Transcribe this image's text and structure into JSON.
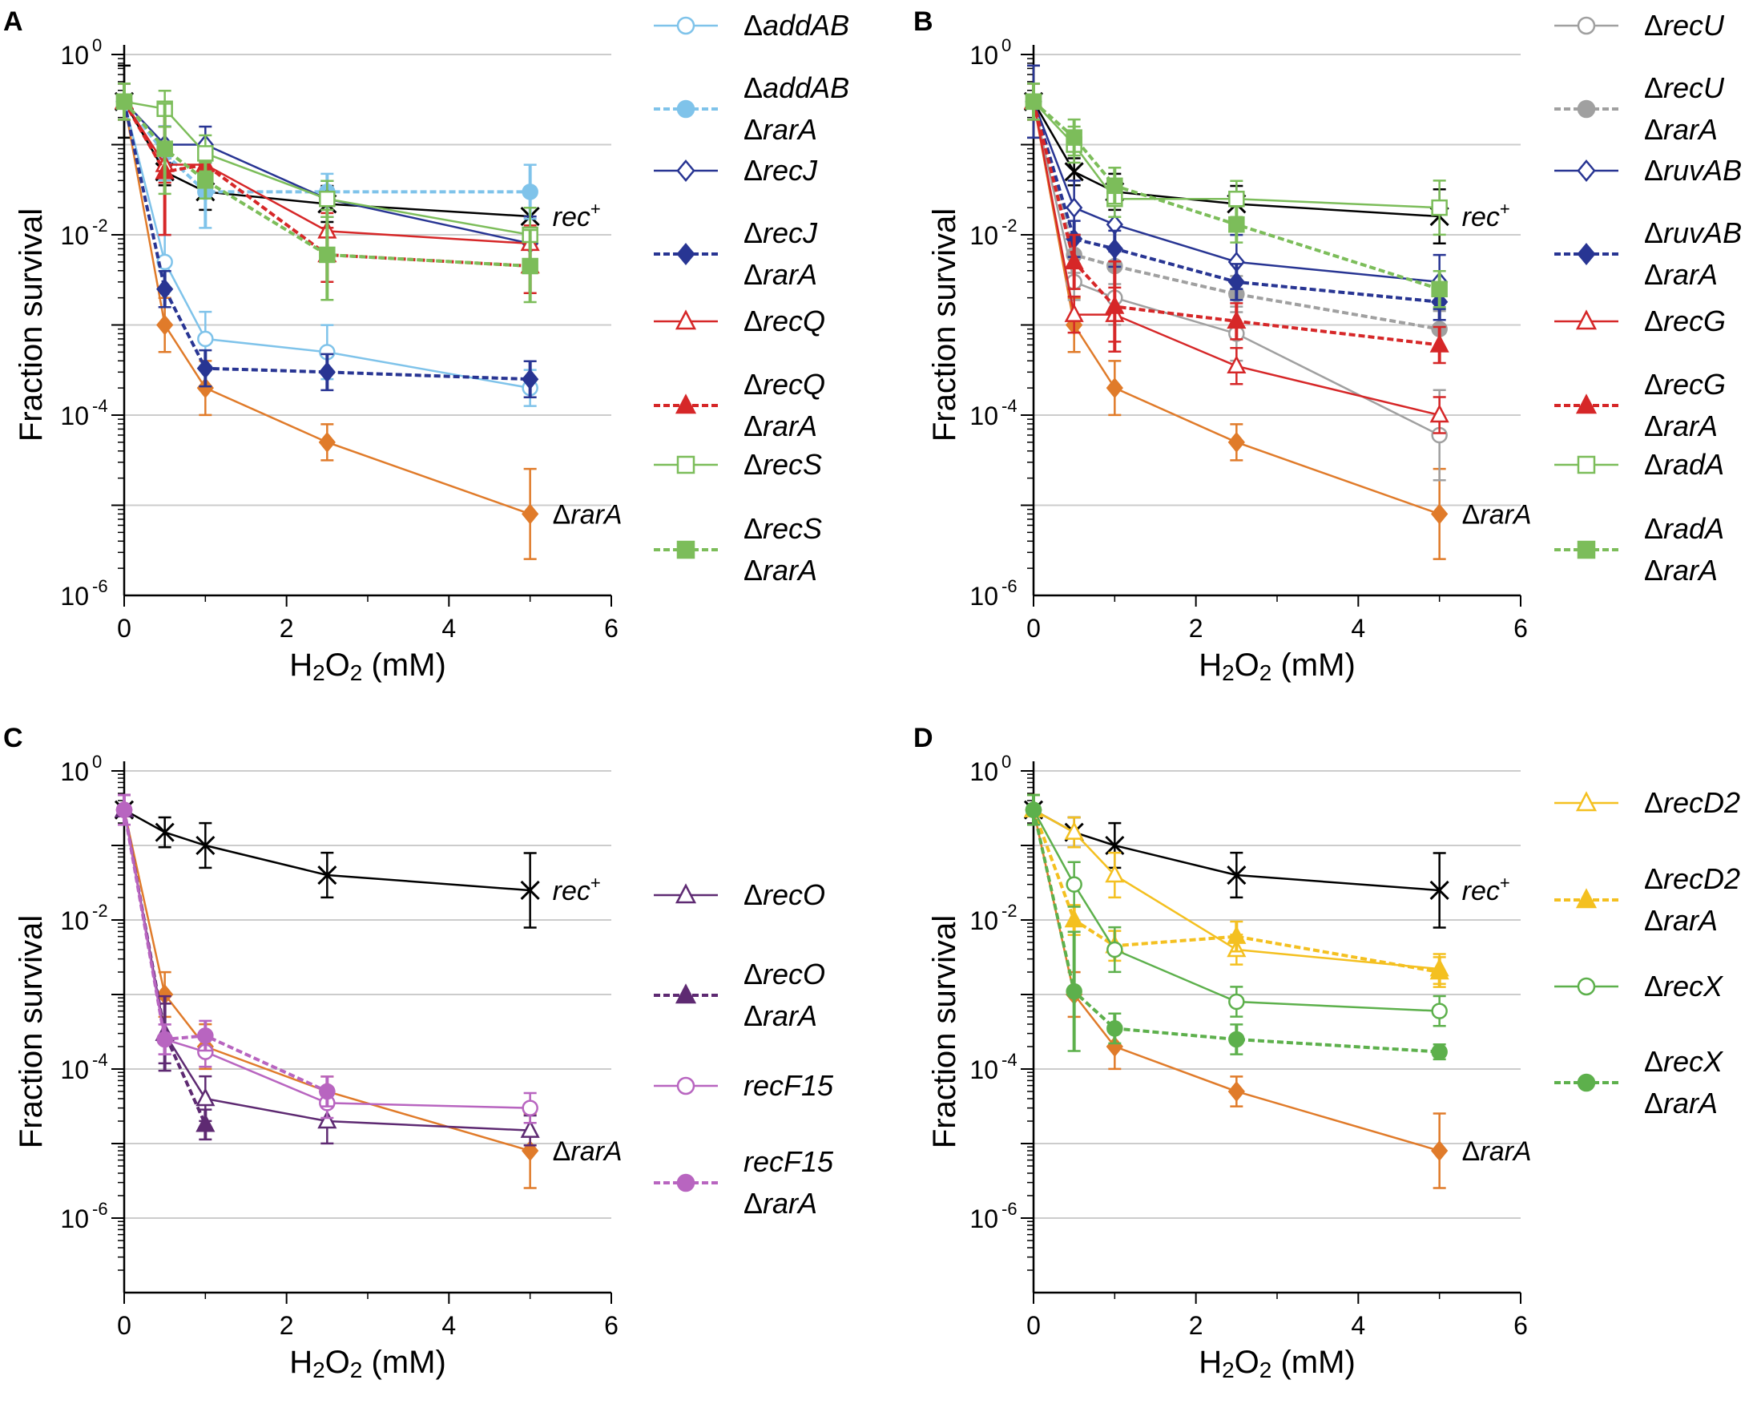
{
  "colors": {
    "rec_plus": "#000000",
    "rarA": "#e07b2a",
    "addAB": "#7fc3ea",
    "recJ": "#283593",
    "recQ": "#d62728",
    "recS": "#7cbd5a",
    "recU": "#a0a0a0",
    "ruvAB": "#283593",
    "recG": "#d62728",
    "radA": "#7cbd5a",
    "recO": "#5e2a72",
    "recO_rarA": "#5e2a72",
    "recF15": "#b865c0",
    "recD2": "#f4c020",
    "recX": "#5db04c",
    "grid": "#cccccc"
  },
  "chart_data": [
    {
      "panel": "A",
      "type": "line",
      "xlabel_prefix": "H",
      "xlabel_sub1": "2",
      "xlabel_mid": "O",
      "xlabel_sub2": "2",
      "xlabel_suffix": " (mM)",
      "ylabel": "Fraction survival",
      "x_ticks": [
        "0",
        "2",
        "4",
        "6"
      ],
      "y_ticks": [
        {
          "base": "10",
          "exp": "0"
        },
        {
          "base": "10",
          "exp": "-2"
        },
        {
          "base": "10",
          "exp": "-4"
        },
        {
          "base": "10",
          "exp": "-6"
        }
      ],
      "xlim": [
        0,
        6
      ],
      "ylog_range": [
        -6,
        0
      ],
      "x": [
        0,
        0.5,
        1,
        2.5,
        5
      ],
      "series": [
        {
          "name": "rec+",
          "label_text": "rec",
          "label_sup": "+",
          "color_key": "rec_plus",
          "marker": "x",
          "dashed": false,
          "values": [
            0.3,
            0.05,
            0.03,
            0.022,
            0.016
          ],
          "err": [
            0.4,
            0.15,
            0.2,
            0.2,
            0.3
          ],
          "legend": false,
          "curve_label": true
        },
        {
          "name": "ΔrarA",
          "label_text": "ΔrarA",
          "color_key": "rarA",
          "marker": "diamond",
          "filled": true,
          "dashed": false,
          "values": [
            0.3,
            0.001,
            0.0002,
            5e-05,
            8e-06
          ],
          "err": [
            0.2,
            0.3,
            0.3,
            0.2,
            0.5
          ],
          "legend": false,
          "curve_label": true
        },
        {
          "name": "ΔaddAB",
          "legend_lines": [
            "ΔaddAB"
          ],
          "color_key": "addAB",
          "marker": "circle",
          "filled": false,
          "dashed": false,
          "values": [
            0.3,
            0.005,
            0.0007,
            0.0005,
            0.0002
          ],
          "err": [
            0.2,
            0.3,
            0.3,
            0.3,
            0.2
          ],
          "legend": true
        },
        {
          "name": "ΔaddAB ΔrarA",
          "legend_lines": [
            "ΔaddAB",
            "ΔrarA"
          ],
          "color_key": "addAB",
          "marker": "circle",
          "filled": true,
          "dashed": true,
          "values": [
            0.3,
            0.08,
            0.03,
            0.03,
            0.03
          ],
          "err": [
            0.2,
            0.3,
            0.4,
            0.2,
            0.3
          ],
          "legend": true
        },
        {
          "name": "ΔrecJ",
          "legend_lines": [
            "ΔrecJ"
          ],
          "color_key": "recJ",
          "marker": "diamond",
          "filled": false,
          "dashed": false,
          "values": [
            0.3,
            0.1,
            0.1,
            0.025,
            0.008
          ],
          "err": [
            0.2,
            0.2,
            0.2,
            0.2,
            0.3
          ],
          "legend": true
        },
        {
          "name": "ΔrecJ ΔrarA",
          "legend_lines": [
            "ΔrecJ",
            "ΔrarA"
          ],
          "color_key": "recJ",
          "marker": "diamond",
          "filled": true,
          "dashed": true,
          "values": [
            0.3,
            0.0025,
            0.00033,
            0.0003,
            0.00025
          ],
          "err": [
            0.2,
            0.2,
            0.2,
            0.2,
            0.2
          ],
          "legend": true
        },
        {
          "name": "ΔrecQ",
          "legend_lines": [
            "ΔrecQ"
          ],
          "color_key": "recQ",
          "marker": "triangle",
          "filled": false,
          "dashed": false,
          "values": [
            0.3,
            0.06,
            0.06,
            0.011,
            0.008
          ],
          "err": [
            0.2,
            0.2,
            0.2,
            0.2,
            0.2
          ],
          "legend": true
        },
        {
          "name": "ΔrecQ ΔrarA",
          "legend_lines": [
            "ΔrecQ",
            "ΔrarA"
          ],
          "color_key": "recQ",
          "marker": "triangle",
          "filled": true,
          "dashed": true,
          "values": [
            0.3,
            0.05,
            0.06,
            0.006,
            0.0045
          ],
          "err": [
            0.2,
            0.7,
            0.2,
            0.3,
            0.3
          ],
          "legend": true
        },
        {
          "name": "ΔrecS",
          "legend_lines": [
            "ΔrecS"
          ],
          "color_key": "recS",
          "marker": "square",
          "filled": false,
          "dashed": false,
          "values": [
            0.3,
            0.25,
            0.08,
            0.025,
            0.01
          ],
          "err": [
            0.2,
            0.2,
            0.2,
            0.2,
            0.3
          ],
          "legend": true
        },
        {
          "name": "ΔrecS ΔrarA",
          "legend_lines": [
            "ΔrecS",
            "ΔrarA"
          ],
          "color_key": "recS",
          "marker": "square",
          "filled": true,
          "dashed": true,
          "values": [
            0.3,
            0.09,
            0.04,
            0.006,
            0.0045
          ],
          "err": [
            0.2,
            0.5,
            0.2,
            0.5,
            0.4
          ],
          "legend": true
        }
      ]
    },
    {
      "panel": "B",
      "type": "line",
      "xlabel_prefix": "H",
      "xlabel_sub1": "2",
      "xlabel_mid": "O",
      "xlabel_sub2": "2",
      "xlabel_suffix": " (mM)",
      "ylabel": "Fraction survival",
      "x_ticks": [
        "0",
        "2",
        "4",
        "6"
      ],
      "y_ticks": [
        {
          "base": "10",
          "exp": "0"
        },
        {
          "base": "10",
          "exp": "-2"
        },
        {
          "base": "10",
          "exp": "-4"
        },
        {
          "base": "10",
          "exp": "-6"
        }
      ],
      "xlim": [
        0,
        6
      ],
      "ylog_range": [
        -6,
        0
      ],
      "x": [
        0,
        0.5,
        1,
        2.5,
        5
      ],
      "series": [
        {
          "name": "rec+",
          "label_text": "rec",
          "label_sup": "+",
          "color_key": "rec_plus",
          "marker": "x",
          "dashed": false,
          "values": [
            0.3,
            0.05,
            0.03,
            0.022,
            0.016
          ],
          "err": [
            0.4,
            0.15,
            0.2,
            0.2,
            0.3
          ],
          "legend": false,
          "curve_label": true
        },
        {
          "name": "ΔrarA",
          "label_text": "ΔrarA",
          "color_key": "rarA",
          "marker": "diamond",
          "filled": true,
          "dashed": false,
          "values": [
            0.3,
            0.001,
            0.0002,
            5e-05,
            8e-06
          ],
          "err": [
            0.2,
            0.3,
            0.3,
            0.2,
            0.5
          ],
          "legend": false,
          "curve_label": true
        },
        {
          "name": "ΔrecU",
          "legend_lines": [
            "ΔrecU"
          ],
          "color_key": "recU",
          "marker": "circle",
          "filled": false,
          "dashed": false,
          "values": [
            0.3,
            0.003,
            0.002,
            0.0008,
            6e-05
          ],
          "err": [
            0.2,
            0.2,
            0.3,
            0.3,
            0.5
          ],
          "legend": true
        },
        {
          "name": "ΔrecU ΔrarA",
          "legend_lines": [
            "ΔrecU",
            "ΔrarA"
          ],
          "color_key": "recU",
          "marker": "circle",
          "filled": true,
          "dashed": true,
          "values": [
            0.3,
            0.006,
            0.0045,
            0.0022,
            0.0009
          ],
          "err": [
            0.2,
            0.2,
            0.2,
            0.2,
            0.2
          ],
          "legend": true
        },
        {
          "name": "ΔruvAB",
          "legend_lines": [
            "ΔruvAB"
          ],
          "color_key": "ruvAB",
          "marker": "diamond",
          "filled": false,
          "dashed": false,
          "values": [
            0.3,
            0.02,
            0.013,
            0.005,
            0.003
          ],
          "err": [
            0.4,
            0.3,
            0.3,
            0.3,
            0.3
          ],
          "legend": true
        },
        {
          "name": "ΔruvAB ΔrarA",
          "legend_lines": [
            "ΔruvAB",
            "ΔrarA"
          ],
          "color_key": "ruvAB",
          "marker": "diamond",
          "filled": true,
          "dashed": true,
          "values": [
            0.3,
            0.009,
            0.007,
            0.003,
            0.0018
          ],
          "err": [
            0.2,
            0.2,
            0.2,
            0.2,
            0.2
          ],
          "legend": true
        },
        {
          "name": "ΔrecG",
          "legend_lines": [
            "ΔrecG"
          ],
          "color_key": "recG",
          "marker": "triangle",
          "filled": false,
          "dashed": false,
          "values": [
            0.3,
            0.0013,
            0.0013,
            0.00035,
            0.0001
          ],
          "err": [
            0.2,
            0.2,
            0.3,
            0.2,
            0.2
          ],
          "legend": true
        },
        {
          "name": "ΔrecG ΔrarA",
          "legend_lines": [
            "ΔrecG",
            "ΔrarA"
          ],
          "color_key": "recG",
          "marker": "triangle",
          "filled": true,
          "dashed": true,
          "values": [
            0.3,
            0.005,
            0.0016,
            0.0011,
            0.0006
          ],
          "err": [
            0.2,
            0.3,
            0.5,
            0.2,
            0.2
          ],
          "legend": true
        },
        {
          "name": "ΔradA",
          "legend_lines": [
            "ΔradA"
          ],
          "color_key": "radA",
          "marker": "square",
          "filled": false,
          "dashed": false,
          "values": [
            0.3,
            0.1,
            0.025,
            0.025,
            0.02
          ],
          "err": [
            0.2,
            0.2,
            0.2,
            0.2,
            0.3
          ],
          "legend": true
        },
        {
          "name": "ΔradA ΔrarA",
          "legend_lines": [
            "ΔradA",
            "ΔrarA"
          ],
          "color_key": "radA",
          "marker": "square",
          "filled": true,
          "dashed": true,
          "values": [
            0.3,
            0.12,
            0.035,
            0.013,
            0.0025
          ],
          "err": [
            0.2,
            0.2,
            0.2,
            0.2,
            0.2
          ],
          "legend": true
        }
      ]
    },
    {
      "panel": "C",
      "type": "line",
      "xlabel_prefix": "H",
      "xlabel_sub1": "2",
      "xlabel_mid": "O",
      "xlabel_sub2": "2",
      "xlabel_suffix": " (mM)",
      "ylabel": "Fraction survival",
      "x_ticks": [
        "0",
        "2",
        "4",
        "6"
      ],
      "y_ticks": [
        {
          "base": "10",
          "exp": "0"
        },
        {
          "base": "10",
          "exp": "-2"
        },
        {
          "base": "10",
          "exp": "-4"
        },
        {
          "base": "10",
          "exp": "-6"
        }
      ],
      "xlim": [
        0,
        6
      ],
      "ylog_range": [
        -7,
        0
      ],
      "x": [
        0,
        0.5,
        1,
        2.5,
        5
      ],
      "series": [
        {
          "name": "rec+",
          "label_text": "rec",
          "label_sup": "+",
          "color_key": "rec_plus",
          "marker": "x",
          "dashed": false,
          "values": [
            0.3,
            0.15,
            0.1,
            0.04,
            0.025
          ],
          "err": [
            0.2,
            0.2,
            0.3,
            0.3,
            0.5
          ],
          "legend": false,
          "curve_label": true
        },
        {
          "name": "ΔrarA",
          "label_text": "ΔrarA",
          "color_key": "rarA",
          "marker": "diamond",
          "filled": true,
          "dashed": false,
          "values": [
            0.3,
            0.001,
            0.0002,
            5e-05,
            8e-06
          ],
          "err": [
            0.2,
            0.3,
            0.3,
            0.2,
            0.5
          ],
          "legend": false,
          "curve_label": true
        },
        {
          "name": "ΔrecO",
          "legend_lines": [
            "ΔrecO"
          ],
          "color_key": "recO",
          "marker": "triangle",
          "filled": false,
          "dashed": false,
          "values": [
            0.3,
            0.0003,
            4e-05,
            2e-05,
            1.5e-05
          ],
          "err": [
            0.2,
            0.4,
            0.3,
            0.3,
            0.2
          ],
          "legend": true
        },
        {
          "name": "ΔrecO ΔrarA",
          "legend_lines": [
            "ΔrecO",
            "ΔrarA"
          ],
          "color_key": "recO_rarA",
          "marker": "triangle",
          "filled": true,
          "dashed": true,
          "values": [
            0.3,
            0.0003,
            1.8e-05,
            null,
            null
          ],
          "err": [
            0.2,
            0.5,
            0.2,
            0,
            0
          ],
          "legend": true
        },
        {
          "name": "recF15",
          "legend_lines": [
            "recF15"
          ],
          "color_key": "recF15",
          "marker": "circle",
          "filled": false,
          "dashed": false,
          "values": [
            0.3,
            0.00025,
            0.00017,
            3.5e-05,
            3e-05
          ],
          "err": [
            0.2,
            0.2,
            0.2,
            0.2,
            0.2
          ],
          "legend": true
        },
        {
          "name": "recF15 ΔrarA",
          "legend_lines": [
            "recF15",
            "ΔrarA"
          ],
          "color_key": "recF15",
          "marker": "circle",
          "filled": true,
          "dashed": true,
          "values": [
            0.3,
            0.00025,
            0.00028,
            5e-05,
            null
          ],
          "err": [
            0.2,
            0.2,
            0.2,
            0.2,
            0
          ],
          "legend": true
        }
      ]
    },
    {
      "panel": "D",
      "type": "line",
      "xlabel_prefix": "H",
      "xlabel_sub1": "2",
      "xlabel_mid": "O",
      "xlabel_sub2": "2",
      "xlabel_suffix": " (mM)",
      "ylabel": "Fraction survival",
      "x_ticks": [
        "0",
        "2",
        "4",
        "6"
      ],
      "y_ticks": [
        {
          "base": "10",
          "exp": "0"
        },
        {
          "base": "10",
          "exp": "-2"
        },
        {
          "base": "10",
          "exp": "-4"
        },
        {
          "base": "10",
          "exp": "-6"
        }
      ],
      "xlim": [
        0,
        6
      ],
      "ylog_range": [
        -7,
        0
      ],
      "x": [
        0,
        0.5,
        1,
        2.5,
        5
      ],
      "series": [
        {
          "name": "rec+",
          "label_text": "rec",
          "label_sup": "+",
          "color_key": "rec_plus",
          "marker": "x",
          "dashed": false,
          "values": [
            0.3,
            0.15,
            0.1,
            0.04,
            0.025
          ],
          "err": [
            0.2,
            0.2,
            0.3,
            0.3,
            0.5
          ],
          "legend": false,
          "curve_label": true
        },
        {
          "name": "ΔrarA",
          "label_text": "ΔrarA",
          "color_key": "rarA",
          "marker": "diamond",
          "filled": true,
          "dashed": false,
          "values": [
            0.3,
            0.001,
            0.0002,
            5e-05,
            8e-06
          ],
          "err": [
            0.2,
            0.3,
            0.3,
            0.2,
            0.5
          ],
          "legend": false,
          "curve_label": true
        },
        {
          "name": "ΔrecD2",
          "legend_lines": [
            "ΔrecD2"
          ],
          "color_key": "recD2",
          "marker": "triangle",
          "filled": false,
          "dashed": false,
          "values": [
            0.3,
            0.15,
            0.04,
            0.004,
            0.0022
          ],
          "err": [
            0.2,
            0.2,
            0.3,
            0.2,
            0.2
          ],
          "legend": true
        },
        {
          "name": "ΔrecD2 ΔrarA",
          "legend_lines": [
            "ΔrecD2",
            "ΔrarA"
          ],
          "color_key": "recD2",
          "marker": "triangle",
          "filled": true,
          "dashed": true,
          "values": [
            0.3,
            0.01,
            0.0045,
            0.006,
            0.002
          ],
          "err": [
            0.2,
            0.2,
            0.2,
            0.2,
            0.2
          ],
          "legend": true
        },
        {
          "name": "ΔrecX",
          "legend_lines": [
            "ΔrecX"
          ],
          "color_key": "recX",
          "marker": "circle",
          "filled": false,
          "dashed": false,
          "values": [
            0.3,
            0.03,
            0.004,
            0.0008,
            0.0006
          ],
          "err": [
            0.2,
            0.3,
            0.3,
            0.2,
            0.2
          ],
          "legend": true
        },
        {
          "name": "ΔrecX ΔrarA",
          "legend_lines": [
            "ΔrecX",
            "ΔrarA"
          ],
          "color_key": "recX",
          "marker": "circle",
          "filled": true,
          "dashed": true,
          "values": [
            0.3,
            0.0011,
            0.00035,
            0.00025,
            0.00017
          ],
          "err": [
            0.2,
            0.8,
            0.2,
            0.2,
            0.1
          ],
          "legend": true
        }
      ]
    }
  ]
}
